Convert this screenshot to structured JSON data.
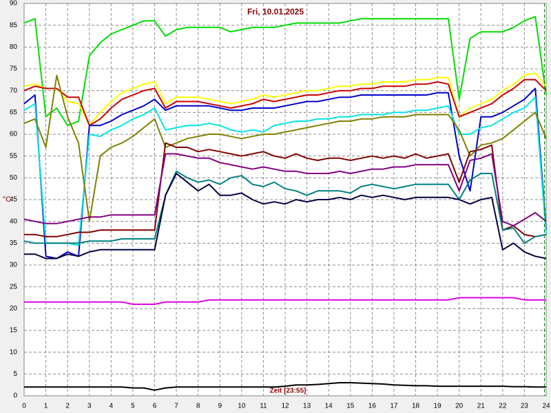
{
  "chart_data": {
    "type": "line",
    "title": "Fri, 10.01.2025",
    "y_label": "°C",
    "x_label": "Zeit [23:55]",
    "xlim": [
      0,
      24
    ],
    "ylim": [
      0,
      90
    ],
    "xticks": [
      0,
      1,
      2,
      3,
      4,
      5,
      6,
      7,
      8,
      9,
      10,
      11,
      12,
      13,
      14,
      15,
      16,
      17,
      18,
      19,
      20,
      21,
      22,
      23,
      24
    ],
    "yticks": [
      0,
      5,
      10,
      15,
      20,
      25,
      30,
      35,
      40,
      45,
      50,
      55,
      60,
      65,
      70,
      75,
      80,
      85,
      90
    ],
    "grid": true,
    "now_marker": 23.92,
    "x": [
      0,
      0.5,
      1,
      1.5,
      2,
      2.5,
      3,
      3.5,
      4,
      4.5,
      5,
      5.5,
      6,
      6.5,
      7,
      7.5,
      8,
      8.5,
      9,
      9.5,
      10,
      10.5,
      11,
      11.5,
      12,
      12.5,
      13,
      13.5,
      14,
      14.5,
      15,
      15.5,
      16,
      16.5,
      17,
      17.5,
      18,
      18.5,
      19,
      19.5,
      20,
      20.5,
      21,
      21.5,
      22,
      22.5,
      23,
      23.5,
      24
    ],
    "series": [
      {
        "color": "#00dd00",
        "values": [
          85.5,
          86.5,
          64,
          66,
          62,
          63,
          78,
          81,
          83,
          84,
          85,
          86,
          86,
          82.5,
          84,
          84.5,
          84.5,
          84.5,
          84.5,
          83.5,
          84,
          84.5,
          84.5,
          84.5,
          85,
          85.5,
          85.5,
          85.5,
          85.5,
          85.5,
          86,
          86.5,
          86.5,
          86.5,
          86.5,
          86.5,
          86.5,
          86.5,
          86.5,
          86.5,
          68,
          82,
          83.5,
          83.5,
          83.5,
          84.5,
          86,
          87,
          69
        ]
      },
      {
        "color": "#ffff00",
        "values": [
          71,
          71.5,
          70.5,
          70.5,
          67.5,
          67,
          62,
          65,
          67.5,
          69.5,
          70.5,
          71.5,
          72,
          67,
          68.5,
          68.5,
          68.5,
          68,
          67.5,
          67,
          67.5,
          68,
          69,
          68.5,
          69,
          69.5,
          70,
          70,
          70.5,
          71,
          71,
          71.5,
          71.5,
          72,
          72,
          72,
          72.5,
          72.5,
          73,
          73,
          64,
          66,
          67,
          68,
          70,
          71.5,
          73.5,
          74,
          71
        ]
      },
      {
        "color": "#cc0000",
        "values": [
          70,
          71,
          70.5,
          70.5,
          68.5,
          68.5,
          62,
          63.5,
          66,
          68,
          69,
          70,
          70.5,
          66,
          67.5,
          67.5,
          67.5,
          67,
          66.5,
          66,
          66.5,
          67,
          68,
          67.5,
          68,
          68.5,
          69,
          69,
          69.5,
          70,
          70,
          70.5,
          70.5,
          71,
          71,
          71,
          71.5,
          71.5,
          72,
          71.5,
          64,
          65,
          66,
          67,
          69,
          70.5,
          72.5,
          72.5,
          70
        ]
      },
      {
        "color": "#0000cc",
        "values": [
          67,
          69,
          32,
          31.5,
          33,
          32,
          62,
          62,
          63,
          64.5,
          65.5,
          66.5,
          68,
          65.5,
          66.5,
          66.5,
          66.5,
          66.5,
          66,
          65.5,
          65.5,
          66,
          66,
          66,
          66.5,
          67,
          67.5,
          67.5,
          68,
          68.5,
          68.5,
          69,
          69,
          69,
          69,
          69,
          69,
          69,
          69.5,
          69.5,
          55,
          47,
          64,
          64,
          65,
          66.5,
          68,
          70.5,
          38
        ]
      },
      {
        "color": "#00e5e5",
        "values": [
          65.5,
          67,
          35,
          35,
          35,
          34.5,
          60,
          59.5,
          61,
          62,
          63.5,
          64.5,
          66,
          61,
          61.5,
          62,
          62,
          62.5,
          62,
          61,
          60.5,
          61,
          60.5,
          62,
          62.5,
          63,
          63,
          63.5,
          63.5,
          64,
          64,
          64.5,
          64.5,
          64.5,
          65,
          65,
          65.5,
          65.5,
          66,
          66.5,
          60,
          60,
          61.5,
          62,
          63.5,
          65,
          66,
          68.5,
          37
        ]
      },
      {
        "color": "#808000",
        "values": [
          62.5,
          63.5,
          57,
          73.5,
          64,
          58,
          40,
          55,
          57,
          58,
          59.5,
          61.5,
          63.5,
          57,
          58,
          59,
          59.5,
          60,
          60,
          59.5,
          59,
          59.5,
          60,
          60,
          60.5,
          61,
          61.5,
          62,
          62.5,
          63,
          63,
          63.5,
          63.5,
          64,
          64,
          64,
          64.5,
          64.5,
          64.5,
          64.5,
          61,
          55,
          57.5,
          58,
          59,
          61,
          63,
          65,
          59
        ]
      },
      {
        "color": "#800000",
        "values": [
          37,
          37,
          36.5,
          36.5,
          37,
          37.5,
          37.5,
          38,
          38,
          38,
          38,
          38,
          38,
          58,
          57,
          57,
          56,
          56.5,
          56,
          55.5,
          55,
          55.5,
          56,
          55,
          54.5,
          55.5,
          54.5,
          54,
          54.5,
          54.5,
          54,
          54.5,
          55,
          54.5,
          55,
          54.5,
          55.5,
          54.5,
          55,
          55.5,
          49,
          56,
          56.5,
          57.5,
          38,
          39,
          37,
          36.5,
          37
        ]
      },
      {
        "color": "#800080",
        "values": [
          40.5,
          40,
          39.5,
          39.5,
          40,
          40.5,
          41,
          41,
          41.5,
          41.5,
          41.5,
          41.5,
          41.5,
          55.5,
          55.5,
          55,
          54.5,
          54.5,
          53.5,
          53,
          52.5,
          52,
          52.5,
          52,
          51.5,
          51.5,
          51,
          51,
          51,
          51.5,
          51,
          51.5,
          52,
          52,
          52.5,
          52.5,
          53,
          53,
          53,
          53,
          47,
          54,
          54.5,
          55.5,
          40,
          39,
          40.5,
          42,
          40
        ]
      },
      {
        "color": "#008080",
        "values": [
          35.5,
          35,
          35,
          35,
          35,
          35,
          35.5,
          35.5,
          35.5,
          36,
          36,
          36,
          36,
          46,
          51.5,
          50,
          49,
          49.5,
          48.5,
          50,
          50.5,
          48.5,
          48,
          49,
          47.5,
          47,
          46,
          47,
          47,
          47,
          46.5,
          48,
          48.5,
          48,
          47.5,
          48,
          48.5,
          48.5,
          48.5,
          48.5,
          45,
          49.5,
          51,
          51,
          38,
          38.5,
          35,
          36.5,
          37
        ]
      },
      {
        "color": "#000040",
        "values": [
          32.5,
          32.5,
          31.5,
          31.5,
          32.5,
          32,
          33,
          33.5,
          33.5,
          33.5,
          33.5,
          33.5,
          33.5,
          46,
          51,
          49,
          47,
          48.5,
          46,
          46,
          46.5,
          45,
          44,
          44.5,
          44,
          45,
          44.5,
          45,
          45,
          45.5,
          45,
          46,
          45.5,
          46,
          45.5,
          45,
          45.5,
          45.5,
          45.5,
          45.5,
          45,
          44,
          45,
          45.5,
          33.5,
          35,
          33,
          32,
          31.5
        ]
      },
      {
        "color": "#e000e0",
        "values": [
          21.5,
          21.5,
          21.5,
          21.5,
          21.5,
          21.5,
          21.5,
          21.5,
          21.5,
          21.5,
          21,
          21,
          21,
          21.5,
          21.5,
          21.5,
          21.5,
          22,
          22,
          22,
          22,
          22,
          22,
          22,
          22,
          22,
          22,
          22,
          22,
          22,
          22,
          22,
          22,
          22,
          22,
          22,
          22,
          22,
          22,
          22,
          22.5,
          22.5,
          22.5,
          22.5,
          22.5,
          22.5,
          22,
          22,
          22
        ]
      },
      {
        "color": "#000000",
        "values": [
          2,
          2,
          2,
          2,
          2,
          2,
          2,
          2,
          2,
          2,
          1.8,
          1.8,
          1.3,
          1.8,
          2,
          2,
          2,
          2,
          2,
          2,
          2,
          2,
          2,
          2,
          2.2,
          2.5,
          2.5,
          2.6,
          2.8,
          3,
          3,
          2.9,
          2.8,
          2.7,
          2.5,
          2.4,
          2.3,
          2.3,
          2.2,
          2.2,
          2.2,
          2.2,
          2.2,
          2.2,
          2.2,
          2.1,
          2.1,
          2,
          2
        ]
      }
    ]
  }
}
